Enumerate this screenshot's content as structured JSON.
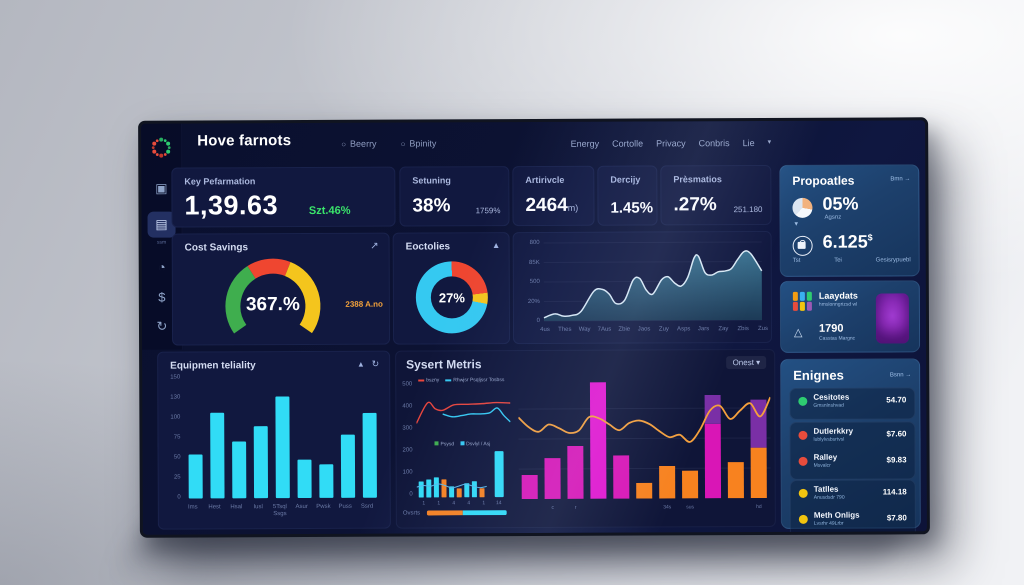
{
  "colors": {
    "cyan": "#31dcf6",
    "magenta": "#d916b6",
    "brightMagenta": "#e317cf",
    "orange": "#f8821f",
    "purple": "#7a2fa6",
    "red": "#e8453c",
    "yellow": "#f4c51d",
    "green": "#3fae4e",
    "deltaGreen": "#3ae56b",
    "areaLine": "#d9e9f4",
    "navy": "#0c1233"
  },
  "header": {
    "title": "Hove farnots",
    "tabs": [
      {
        "label": "Beerry"
      },
      {
        "label": "Bpinity"
      }
    ],
    "nav": [
      "Energy",
      "Cortolle",
      "Privacy",
      "Conbris",
      "Lie"
    ],
    "nav_caret": "▾"
  },
  "sidebar": {
    "items": [
      {
        "icon": "camera-icon",
        "glyph": "▣"
      },
      {
        "icon": "documents-icon",
        "glyph": "▤",
        "active": true,
        "label": "ssm"
      },
      {
        "icon": "smiley-icon",
        "glyph": "◔"
      },
      {
        "icon": "dollar-icon",
        "glyph": "$"
      },
      {
        "icon": "history-icon",
        "glyph": "↻"
      }
    ]
  },
  "kpi_main": {
    "title": "Key Pefarmation",
    "value": "1,39.63",
    "delta": "Szt.46%"
  },
  "kpi_cards": [
    {
      "title": "Setuning",
      "value": "38%",
      "sub": "1759%",
      "unit": ""
    },
    {
      "title": "Artirivcle",
      "value": "2464",
      "sub": "",
      "unit": "m)"
    },
    {
      "title": "Dercijy",
      "value": "1.45%",
      "sub": "",
      "unit": ""
    },
    {
      "title": "Prèsmatios",
      "value": ".27%",
      "sub": "251.180",
      "unit": ""
    }
  ],
  "gauge": {
    "title": "Cost Savings",
    "value": "367.%",
    "note": "2388 A.no",
    "arrow": "↗",
    "segments": [
      {
        "color": "#3fae4e",
        "from": -125,
        "to": -32
      },
      {
        "color": "#ef4630",
        "from": -32,
        "to": 22
      },
      {
        "color": "#f4c51d",
        "from": 22,
        "to": 125
      }
    ]
  },
  "donut": {
    "title": "Eoctolies",
    "value": "27%",
    "caret": "▴",
    "slices": [
      {
        "color": "#ef4630",
        "pct": 23
      },
      {
        "color": "#f4c51d",
        "pct": 5
      },
      {
        "color": "#35c9f1",
        "pct": 72
      }
    ]
  },
  "area_chart": {
    "type": "area",
    "yticks": [
      "800",
      "85K",
      "500",
      "20%",
      "0"
    ],
    "xticks": [
      "4us",
      "Thes",
      "Way",
      "7Aus",
      "Zbie",
      "Jaos",
      "Zuy",
      "Asps",
      "Jars",
      "Zay",
      "Zbis",
      "Zus"
    ],
    "points": [
      [
        0,
        4
      ],
      [
        5,
        9
      ],
      [
        9,
        6
      ],
      [
        13,
        7
      ],
      [
        17,
        12
      ],
      [
        23,
        38
      ],
      [
        27,
        40
      ],
      [
        30,
        34
      ],
      [
        33,
        22
      ],
      [
        37,
        26
      ],
      [
        41,
        52
      ],
      [
        44,
        54
      ],
      [
        47,
        39
      ],
      [
        50,
        34
      ],
      [
        54,
        52
      ],
      [
        57,
        56
      ],
      [
        60,
        48
      ],
      [
        63,
        44
      ],
      [
        66,
        55
      ],
      [
        69,
        80
      ],
      [
        71,
        82
      ],
      [
        74,
        61
      ],
      [
        77,
        58
      ],
      [
        80,
        62
      ],
      [
        83,
        63
      ],
      [
        86,
        66
      ],
      [
        89,
        78
      ],
      [
        92,
        88
      ],
      [
        95,
        85
      ],
      [
        100,
        63
      ]
    ]
  },
  "reliability": {
    "type": "bar",
    "title": "Equipmen teliality",
    "icon_up": "▴",
    "icon_refresh": "↻",
    "yticks": [
      "150",
      "130",
      "100",
      "75",
      "50",
      "25",
      "0"
    ],
    "categories": [
      "Ims",
      "Hest",
      "Hsal",
      "Iusl",
      "5Tsql",
      "Asur",
      "Pwsk",
      "Puss",
      "Ssrd"
    ],
    "cat_sub": "Ssgs",
    "values": [
      55,
      107,
      71,
      90,
      127,
      48,
      42,
      79,
      106
    ],
    "ymax": 150
  },
  "sysmet": {
    "title": "Sysert Metris",
    "dropdown": "Onest",
    "dropdown_caret": "▾",
    "legend1": [
      {
        "color": "#e8453c",
        "label": "bszny"
      },
      {
        "color": "#35c9f1",
        "label": "Rhwjsr Psqljssr Tosbss"
      }
    ],
    "legend2": [
      {
        "color": "#3fae4e",
        "label": "Psysd"
      },
      {
        "color": "#35c9f1",
        "label": "Dsvlyl / Asj"
      }
    ],
    "yticks": [
      "500",
      "400",
      "300",
      "200",
      "100",
      "0"
    ],
    "line_red": [
      [
        0,
        28
      ],
      [
        12,
        66
      ],
      [
        20,
        55
      ],
      [
        28,
        52
      ],
      [
        40,
        62
      ],
      [
        55,
        63
      ],
      [
        70,
        64
      ],
      [
        85,
        66
      ],
      [
        100,
        65
      ]
    ],
    "line_cyan": [
      [
        28,
        45
      ],
      [
        38,
        40
      ],
      [
        48,
        42
      ],
      [
        58,
        45
      ],
      [
        68,
        45
      ],
      [
        78,
        47
      ],
      [
        86,
        56
      ],
      [
        93,
        42
      ],
      [
        100,
        30
      ]
    ],
    "mini_bars": {
      "values": [
        16,
        18,
        20,
        18,
        11,
        9,
        14,
        16,
        9
      ],
      "colors": [
        "cyan",
        "cyan",
        "cyan",
        "orange",
        "cyan",
        "orange",
        "cyan",
        "cyan",
        "orange"
      ],
      "tall_value": 46,
      "line": [
        [
          0,
          26
        ],
        [
          10,
          30
        ],
        [
          20,
          28
        ],
        [
          30,
          34
        ],
        [
          40,
          30
        ],
        [
          50,
          24
        ],
        [
          60,
          28
        ],
        [
          70,
          33
        ],
        [
          80,
          28
        ],
        [
          90,
          24
        ],
        [
          100,
          27
        ]
      ],
      "xticks": [
        "1",
        "1",
        "4",
        "4",
        "1",
        "14"
      ]
    },
    "overall": {
      "label": "Ovsrts",
      "orange_pct": 45,
      "cyan_pct": 55
    },
    "main_bars": {
      "stacks": [
        [
          [
            "magenta",
            20
          ]
        ],
        [
          [
            "magenta",
            34
          ]
        ],
        [
          [
            "magenta",
            44
          ]
        ],
        [
          [
            "brightMagenta",
            97
          ]
        ],
        [
          [
            "magenta",
            36
          ]
        ],
        [
          [
            "orange",
            13
          ]
        ],
        [
          [
            "orange",
            27
          ]
        ],
        [
          [
            "orange",
            23
          ]
        ],
        [
          [
            "magenta",
            62
          ],
          [
            "purple",
            24
          ]
        ],
        [
          [
            "orange",
            30
          ]
        ],
        [
          [
            "orange",
            42
          ],
          [
            "purple",
            40
          ]
        ]
      ],
      "line": [
        68,
        60,
        56,
        62,
        59,
        55,
        57,
        68,
        67,
        62,
        57,
        63,
        65,
        62,
        56,
        51,
        53,
        47,
        57,
        73,
        77,
        66,
        73,
        79,
        68,
        84
      ],
      "xticks": [
        {
          "slot": 1,
          "label": "c"
        },
        {
          "slot": 2,
          "label": "r"
        },
        {
          "slot": 6,
          "label": "34s"
        },
        {
          "slot": 7,
          "label": "sus"
        },
        {
          "slot": 10,
          "label": "hd"
        }
      ]
    }
  },
  "right_panel": {
    "title": "Propoatles",
    "link": "Bmn →",
    "caret": "▾",
    "stats": [
      {
        "icon": "pie-chart-icon",
        "value": "05%",
        "label": "Agsnz"
      },
      {
        "icon": "bag-icon",
        "value": "6.125",
        "currency": "$",
        "labels": [
          "Tst",
          "Tei",
          "Gesisrypuebl"
        ]
      }
    ]
  },
  "promo": {
    "title": "Laaydats",
    "subtitle": "hmslonngrizsd wl",
    "value": "1790",
    "label": "Casstas Margnc"
  },
  "engines": {
    "title": "Enignes",
    "link": "Bsnn →",
    "groups": [
      [
        {
          "dot": "#2ecc71",
          "name": "Cesitotes",
          "sub": "Gmsnlnshvad",
          "value": "54.70"
        }
      ],
      [
        {
          "dot": "#e74c3c",
          "name": "Dutlerkkry",
          "sub": "lublylvsbsrtvsl",
          "value": "$7.60"
        },
        {
          "dot": "#e74c3c",
          "name": "Ralley",
          "sub": "Msvalcr",
          "value": "$9.83"
        }
      ],
      [
        {
          "dot": "#f1c40f",
          "name": "Tatlles",
          "sub": "Anusdsdr 790",
          "value": "114.18"
        },
        {
          "dot": "#f1c40f",
          "name": "Meth Onligs",
          "sub": "Lvsrhr 49Lrbr",
          "value": "$7.80"
        }
      ]
    ]
  }
}
